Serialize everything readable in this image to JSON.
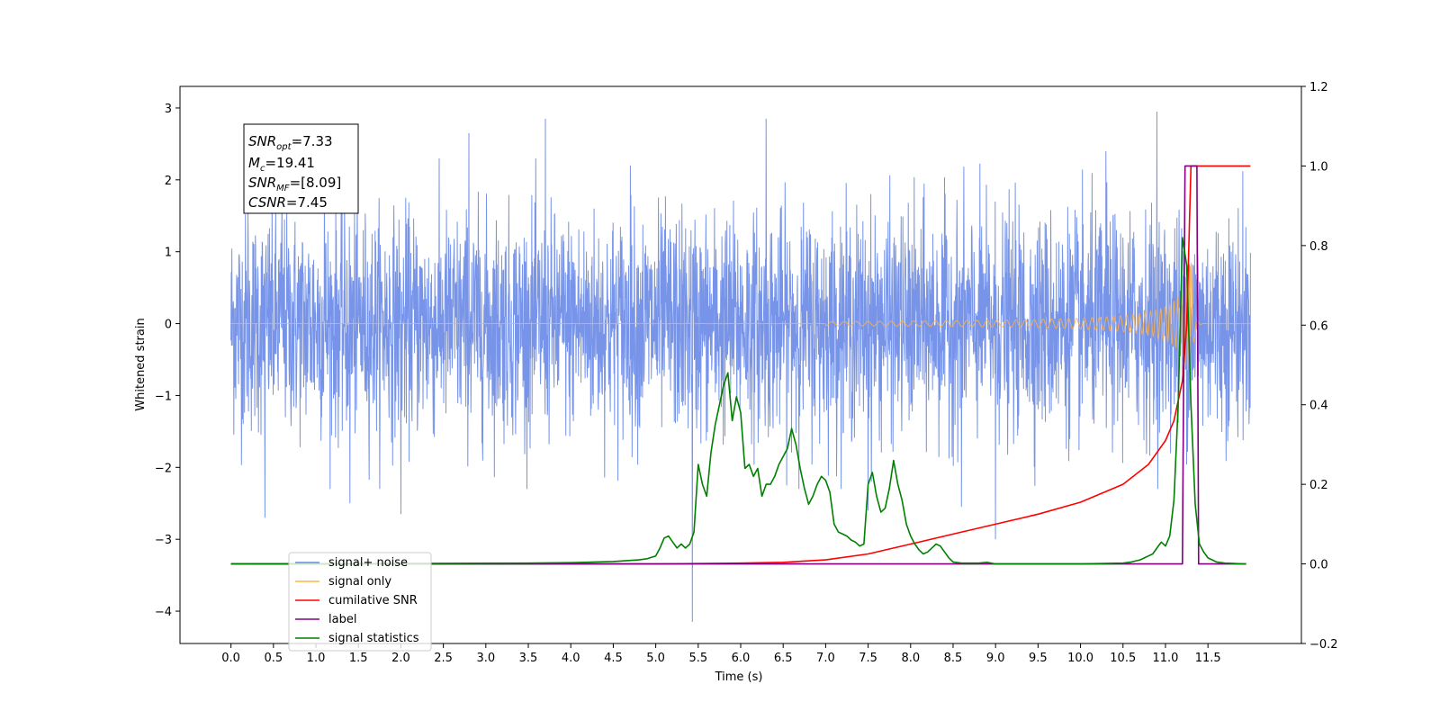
{
  "chart_data": {
    "type": "line",
    "xlabel": "Time (s)",
    "ylabel": "Whitened strain",
    "xlim": [
      -0.6,
      12.6
    ],
    "ylim": [
      -4.45,
      3.3
    ],
    "ylim_right": [
      -0.2,
      1.2
    ],
    "x_ticks": [
      "0.0",
      "0.5",
      "1.0",
      "1.5",
      "2.0",
      "2.5",
      "3.0",
      "3.5",
      "4.0",
      "4.5",
      "5.0",
      "5.5",
      "6.0",
      "6.5",
      "7.0",
      "7.5",
      "8.0",
      "8.5",
      "9.0",
      "9.5",
      "10.0",
      "10.5",
      "11.0",
      "11.5"
    ],
    "y_ticks": [
      "3",
      "2",
      "1",
      "0",
      "−1",
      "−2",
      "−3",
      "−4"
    ],
    "y_ticks_right": [
      "1.2",
      "1.0",
      "0.8",
      "0.6",
      "0.4",
      "0.2",
      "0.0",
      "−0.2"
    ],
    "legend_position": "lower-left",
    "legend": [
      {
        "label": "signal+ noise",
        "color": "#6b8be6"
      },
      {
        "label": "signal only",
        "color": "#ffb347"
      },
      {
        "label": "cumilative SNR",
        "color": "#ff0000"
      },
      {
        "label": "label",
        "color": "#800080"
      },
      {
        "label": "signal statistics",
        "color": "#008000"
      }
    ],
    "annotation": {
      "snr_opt": {
        "name": "SNR",
        "sub": "opt",
        "value": "=7.33"
      },
      "mc": {
        "name": "M",
        "sub": "c",
        "value": "=19.41"
      },
      "snr_mf": {
        "name": "SNR",
        "sub": "MF",
        "value": "=[8.09]"
      },
      "csnr": {
        "name": "CSNR",
        "value": "=7.45"
      }
    },
    "series": [
      {
        "name": "signal+ noise",
        "axis": "left",
        "color": "#6b8be6",
        "t_start": 0.0,
        "t_end": 12.0,
        "std": 0.75,
        "peaks": [
          [
            0.2,
            1.55
          ],
          [
            0.4,
            -2.7
          ],
          [
            0.6,
            1.7
          ],
          [
            1.1,
            2.3
          ],
          [
            1.4,
            -2.5
          ],
          [
            2.0,
            -2.65
          ],
          [
            2.8,
            2.65
          ],
          [
            3.7,
            2.85
          ],
          [
            4.7,
            2.2
          ],
          [
            5.43,
            -4.15
          ],
          [
            6.3,
            2.85
          ],
          [
            7.5,
            -2.6
          ],
          [
            8.6,
            -2.55
          ],
          [
            9.0,
            -3.0
          ],
          [
            10.3,
            2.4
          ],
          [
            10.9,
            2.95
          ]
        ]
      },
      {
        "name": "signal only",
        "axis": "left",
        "color": "#ffb347",
        "chirp_start": 7.0,
        "merger": 11.3,
        "amplitude_at_merger": 1.1
      },
      {
        "name": "cumilative SNR",
        "axis": "right",
        "color": "#ff0000",
        "x": [
          0,
          4,
          5,
          6,
          6.5,
          7,
          7.5,
          8,
          8.5,
          9,
          9.5,
          10,
          10.5,
          10.8,
          11,
          11.1,
          11.2,
          11.25,
          11.3,
          11.35,
          12.0
        ],
        "y": [
          0,
          0,
          0,
          0.002,
          0.004,
          0.01,
          0.025,
          0.05,
          0.075,
          0.1,
          0.125,
          0.155,
          0.2,
          0.25,
          0.31,
          0.36,
          0.46,
          0.6,
          1.0,
          1.0,
          1.0
        ]
      },
      {
        "name": "label",
        "axis": "right",
        "color": "#800080",
        "x": [
          0,
          11.2,
          11.23,
          11.37,
          11.39,
          11.95
        ],
        "y": [
          0,
          0,
          1.0,
          1.0,
          0,
          0
        ]
      },
      {
        "name": "signal statistics",
        "axis": "right",
        "color": "#008000",
        "x": [
          0,
          3.5,
          4.0,
          4.5,
          4.8,
          4.9,
          5.0,
          5.05,
          5.1,
          5.15,
          5.2,
          5.25,
          5.3,
          5.35,
          5.4,
          5.45,
          5.5,
          5.55,
          5.6,
          5.65,
          5.7,
          5.75,
          5.8,
          5.85,
          5.9,
          5.95,
          6.0,
          6.05,
          6.1,
          6.15,
          6.2,
          6.25,
          6.3,
          6.35,
          6.4,
          6.45,
          6.5,
          6.55,
          6.6,
          6.65,
          6.7,
          6.75,
          6.8,
          6.85,
          6.9,
          6.95,
          7.0,
          7.05,
          7.1,
          7.15,
          7.2,
          7.25,
          7.3,
          7.35,
          7.4,
          7.45,
          7.5,
          7.55,
          7.6,
          7.65,
          7.7,
          7.75,
          7.8,
          7.85,
          7.9,
          7.95,
          8.0,
          8.05,
          8.1,
          8.15,
          8.2,
          8.25,
          8.3,
          8.35,
          8.4,
          8.45,
          8.5,
          8.6,
          8.7,
          8.8,
          8.9,
          9.0,
          10.0,
          10.5,
          10.6,
          10.7,
          10.8,
          10.85,
          10.9,
          10.95,
          11.0,
          11.05,
          11.1,
          11.15,
          11.2,
          11.25,
          11.3,
          11.35,
          11.4,
          11.45,
          11.5,
          11.6,
          11.7,
          11.8,
          11.9,
          11.95
        ],
        "y": [
          0,
          0.002,
          0.003,
          0.006,
          0.01,
          0.013,
          0.02,
          0.04,
          0.065,
          0.07,
          0.055,
          0.04,
          0.05,
          0.04,
          0.05,
          0.08,
          0.25,
          0.2,
          0.17,
          0.28,
          0.35,
          0.4,
          0.45,
          0.48,
          0.36,
          0.42,
          0.38,
          0.24,
          0.25,
          0.22,
          0.24,
          0.17,
          0.2,
          0.2,
          0.22,
          0.25,
          0.27,
          0.29,
          0.34,
          0.3,
          0.24,
          0.19,
          0.15,
          0.17,
          0.2,
          0.22,
          0.21,
          0.18,
          0.1,
          0.08,
          0.075,
          0.07,
          0.06,
          0.055,
          0.045,
          0.05,
          0.2,
          0.23,
          0.17,
          0.13,
          0.14,
          0.19,
          0.26,
          0.2,
          0.16,
          0.1,
          0.07,
          0.05,
          0.035,
          0.025,
          0.03,
          0.04,
          0.05,
          0.045,
          0.03,
          0.015,
          0.005,
          0.002,
          0.002,
          0.002,
          0.004,
          0,
          0,
          0.002,
          0.005,
          0.01,
          0.02,
          0.025,
          0.04,
          0.055,
          0.045,
          0.07,
          0.16,
          0.4,
          0.82,
          0.75,
          0.4,
          0.15,
          0.05,
          0.03,
          0.015,
          0.005,
          0.002,
          0.001,
          0,
          0
        ]
      }
    ]
  }
}
